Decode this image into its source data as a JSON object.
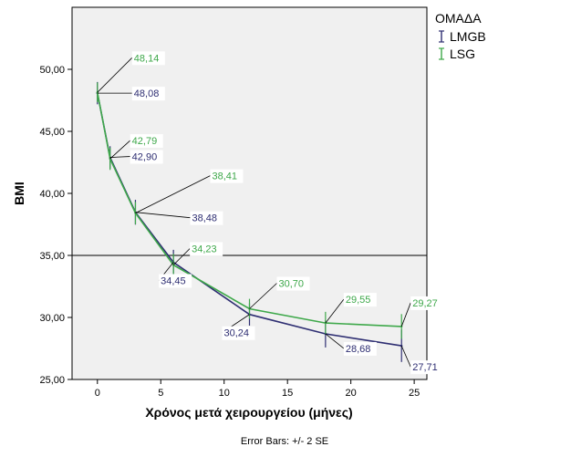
{
  "chart_data": {
    "type": "line",
    "xlabel": "Χρόνος μετά χειρουργείου (μήνες)",
    "ylabel": "BMI",
    "xlim": [
      -2,
      26
    ],
    "ylim": [
      25,
      55
    ],
    "xticks": [
      0,
      5,
      10,
      15,
      20,
      25
    ],
    "yticks": [
      25,
      30,
      35,
      40,
      45,
      50
    ],
    "ytick_labels": [
      "25,00",
      "30,00",
      "35,00",
      "40,00",
      "45,00",
      "50,00"
    ],
    "reference_line": 35,
    "grid": false,
    "legend": {
      "title": "ΟΜΑΔΑ",
      "position": "right"
    },
    "footnote": "Error Bars: +/- 2 SE",
    "series": [
      {
        "name": "LMGB",
        "color": "#2e2e72",
        "x": [
          0,
          1,
          3,
          6,
          12,
          18,
          24
        ],
        "values": [
          48.08,
          42.9,
          38.48,
          34.45,
          30.24,
          28.68,
          27.71
        ],
        "labels": [
          "48,08",
          "42,90",
          "38,48",
          "34,45",
          "30,24",
          "28,68",
          "27,71"
        ],
        "error": [
          0.9,
          0.9,
          1.0,
          1.0,
          0.9,
          1.1,
          1.3
        ]
      },
      {
        "name": "LSG",
        "color": "#3ea84a",
        "x": [
          0,
          1,
          3,
          6,
          12,
          18,
          24
        ],
        "values": [
          48.14,
          42.79,
          38.41,
          34.23,
          30.7,
          29.55,
          29.27
        ],
        "labels": [
          "48,14",
          "42,79",
          "38,41",
          "34,23",
          "30,70",
          "29,55",
          "29,27"
        ],
        "error": [
          0.8,
          0.9,
          0.9,
          0.9,
          0.8,
          0.9,
          1.0
        ]
      }
    ]
  }
}
